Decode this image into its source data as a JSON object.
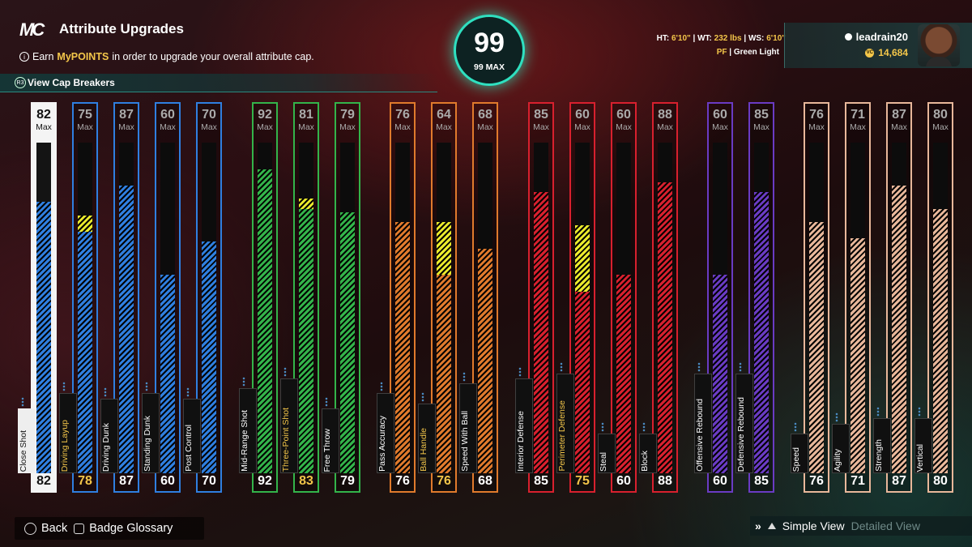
{
  "header": {
    "logo": "MC",
    "title": "Attribute Upgrades",
    "earn_prefix": "Earn ",
    "earn_highlight": "MyPOINTS",
    "earn_suffix": " in order to upgrade your overall attribute cap.",
    "cap_breakers": "View Cap Breakers"
  },
  "overall": {
    "value": "99",
    "max_label": "99 MAX"
  },
  "player": {
    "ht_label": "HT:",
    "ht": "6'10\"",
    "wt_label": "WT:",
    "wt": "232 lbs",
    "ws_label": "WS:",
    "ws": "6'10\"",
    "position": "PF",
    "shot_type": "Green Light",
    "username": "leadrain20",
    "vc": "14,684"
  },
  "max_word": "Max",
  "attributes": [
    {
      "name": "Close Shot",
      "max": 82,
      "current": 82,
      "upgrade": 0,
      "group": "white"
    },
    {
      "name": "Driving Layup",
      "max": 75,
      "current": 78,
      "upgrade": 5,
      "group": "blue"
    },
    {
      "name": "Driving Dunk",
      "max": 87,
      "current": 87,
      "upgrade": 0,
      "group": "blue"
    },
    {
      "name": "Standing Dunk",
      "max": 60,
      "current": 60,
      "upgrade": 0,
      "group": "blue"
    },
    {
      "name": "Post Control",
      "max": 70,
      "current": 70,
      "upgrade": 0,
      "group": "blue"
    },
    {
      "name": "Mid-Range Shot",
      "max": 92,
      "current": 92,
      "upgrade": 0,
      "group": "green"
    },
    {
      "name": "Three-Point Shot",
      "max": 81,
      "current": 83,
      "upgrade": 3,
      "group": "green"
    },
    {
      "name": "Free Throw",
      "max": 79,
      "current": 79,
      "upgrade": 0,
      "group": "green"
    },
    {
      "name": "Pass Accuracy",
      "max": 76,
      "current": 76,
      "upgrade": 0,
      "group": "orange"
    },
    {
      "name": "Ball Handle",
      "max": 64,
      "current": 76,
      "upgrade": 16,
      "group": "orange"
    },
    {
      "name": "Speed With Ball",
      "max": 68,
      "current": 68,
      "upgrade": 0,
      "group": "orange"
    },
    {
      "name": "Interior Defense",
      "max": 85,
      "current": 85,
      "upgrade": 0,
      "group": "red"
    },
    {
      "name": "Perimeter Defense",
      "max": 60,
      "current": 75,
      "upgrade": 20,
      "group": "red"
    },
    {
      "name": "Steal",
      "max": 60,
      "current": 60,
      "upgrade": 0,
      "group": "red"
    },
    {
      "name": "Block",
      "max": 88,
      "current": 88,
      "upgrade": 0,
      "group": "red"
    },
    {
      "name": "Offensive Rebound",
      "max": 60,
      "current": 60,
      "upgrade": 0,
      "group": "purple"
    },
    {
      "name": "Defensive Rebound",
      "max": 85,
      "current": 85,
      "upgrade": 0,
      "group": "purple"
    },
    {
      "name": "Speed",
      "max": 76,
      "current": 76,
      "upgrade": 0,
      "group": "tan"
    },
    {
      "name": "Agility",
      "max": 71,
      "current": 71,
      "upgrade": 0,
      "group": "tan"
    },
    {
      "name": "Strength",
      "max": 87,
      "current": 87,
      "upgrade": 0,
      "group": "tan"
    },
    {
      "name": "Vertical",
      "max": 80,
      "current": 80,
      "upgrade": 0,
      "group": "tan"
    }
  ],
  "group_colors": {
    "white": "#f4f4f4",
    "blue": "#2f7fe0",
    "green": "#33b44a",
    "orange": "#e07a2c",
    "red": "#d8202e",
    "purple": "#6a3bc4",
    "tan": "#e8b79a"
  },
  "highlight_color": "#f3c64a",
  "upgrade_color": "#eaea2c",
  "footer": {
    "back": "Back",
    "badge_glossary": "Badge Glossary",
    "simple_view": "Simple View",
    "detailed_view": "Detailed View"
  }
}
